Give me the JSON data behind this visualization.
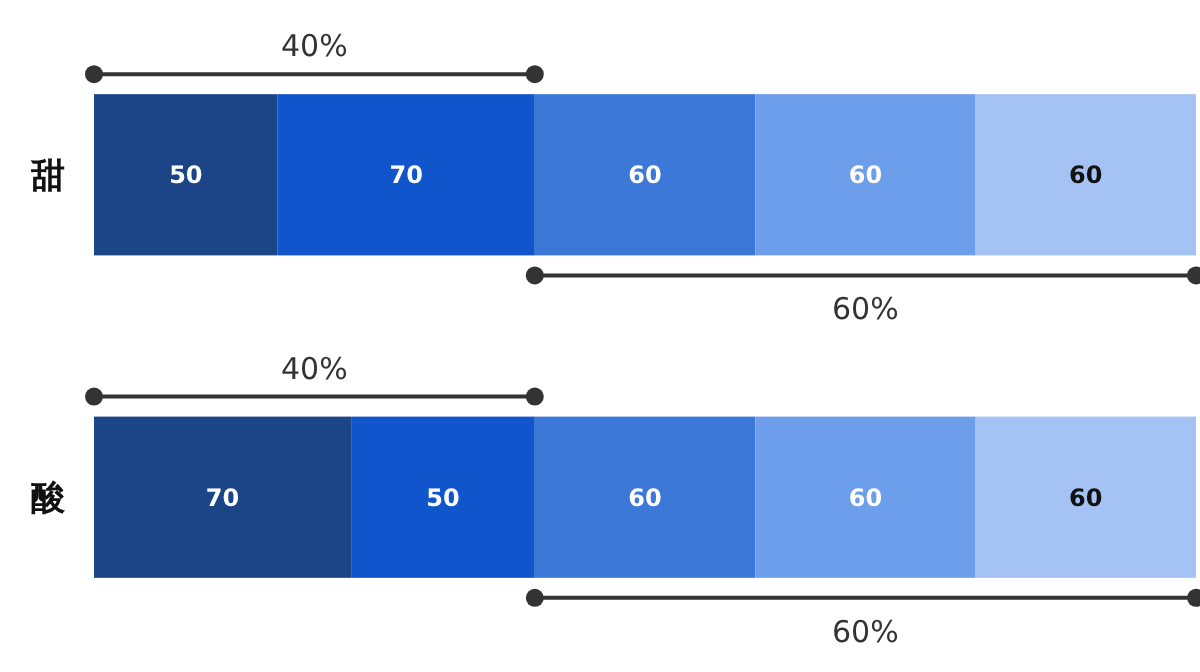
{
  "chart_data": {
    "type": "bar",
    "orientation": "horizontal",
    "stacked": true,
    "data_labels": true,
    "categories": [
      "甜",
      "酸"
    ],
    "series": [
      {
        "color": "#1c4587",
        "values": [
          50,
          70
        ]
      },
      {
        "color": "#1155cc",
        "values": [
          70,
          50
        ]
      },
      {
        "color": "#3c78d8",
        "values": [
          60,
          60
        ]
      },
      {
        "color": "#6d9eeb",
        "values": [
          60,
          60
        ]
      },
      {
        "color": "#a4c2f4",
        "values": [
          60,
          60
        ]
      }
    ],
    "annotations": [
      "40%",
      "60%",
      "40%",
      "60%"
    ]
  }
}
